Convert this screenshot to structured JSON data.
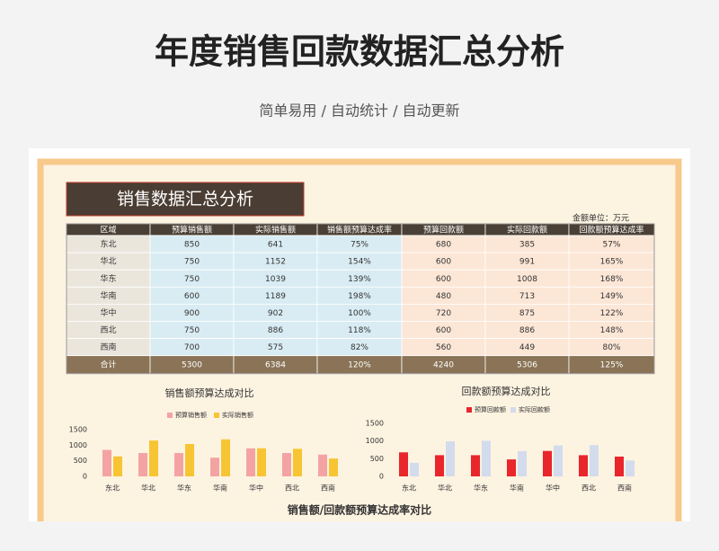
{
  "header": {
    "title": "年度销售回款数据汇总分析",
    "subtitle": "简单易用 / 自动统计 / 自动更新"
  },
  "sheet": {
    "title": "销售数据汇总分析",
    "unit_note": "金额单位：万元",
    "table": {
      "header": [
        "区域",
        "预算销售额",
        "实际销售额",
        "销售额预算达成率",
        "预算回款额",
        "实际回款额",
        "回款额预算达成率"
      ],
      "rows": [
        [
          "东北",
          850,
          641,
          "75%",
          680,
          385,
          "57%"
        ],
        [
          "华北",
          750,
          1152,
          "154%",
          600,
          991,
          "165%"
        ],
        [
          "华东",
          750,
          1039,
          "139%",
          600,
          1008,
          "168%"
        ],
        [
          "华南",
          600,
          1189,
          "198%",
          480,
          713,
          "149%"
        ],
        [
          "华中",
          900,
          902,
          "100%",
          720,
          875,
          "122%"
        ],
        [
          "西北",
          750,
          886,
          "118%",
          600,
          886,
          "148%"
        ],
        [
          "西南",
          700,
          575,
          "82%",
          560,
          449,
          "80%"
        ]
      ],
      "total": [
        "合计",
        5300,
        6384,
        "120%",
        4240,
        5306,
        "125%"
      ]
    },
    "charts": [
      {
        "type": "bar",
        "title": "销售额预算达成对比",
        "categories": [
          "东北",
          "华北",
          "华东",
          "华南",
          "华中",
          "西北",
          "西南"
        ],
        "ylim": [
          0,
          1500
        ],
        "yticks": [
          0,
          500,
          1000,
          1500
        ],
        "series": [
          {
            "name": "预算销售额",
            "color": "#f4a3a3",
            "values": [
              850,
              750,
              750,
              600,
              900,
              750,
              700
            ]
          },
          {
            "name": "实际销售额",
            "color": "#f7c533",
            "values": [
              641,
              1152,
              1039,
              1189,
              902,
              886,
              575
            ]
          }
        ]
      },
      {
        "type": "bar",
        "title": "回款额预算达成对比",
        "categories": [
          "东北",
          "华北",
          "华东",
          "华南",
          "华中",
          "西北",
          "西南"
        ],
        "ylim": [
          0,
          1500
        ],
        "yticks": [
          0,
          500,
          1000,
          1500
        ],
        "series": [
          {
            "name": "预算回款额",
            "color": "#e8262b",
            "values": [
              680,
              600,
              600,
              480,
              720,
              600,
              560
            ]
          },
          {
            "name": "实际回款额",
            "color": "#d3dcec",
            "values": [
              385,
              991,
              1008,
              713,
              875,
              886,
              449
            ]
          }
        ]
      }
    ],
    "footer_chart_title": "销售额/回款额预算达成率对比"
  }
}
